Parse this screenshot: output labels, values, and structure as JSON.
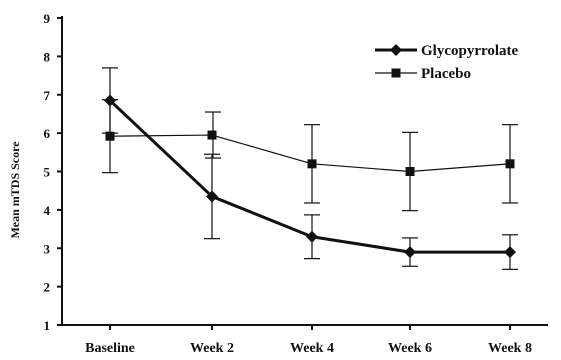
{
  "chart_data": {
    "type": "line",
    "title": "",
    "xlabel": "",
    "ylabel": "Mean mTDS Score",
    "ylim": [
      1,
      9
    ],
    "yticks": [
      1,
      2,
      3,
      4,
      5,
      6,
      7,
      8,
      9
    ],
    "categories": [
      "Baseline",
      "Week 2",
      "Week 4",
      "Week 6",
      "Week 8"
    ],
    "grid": false,
    "legend_position": "top-right",
    "series": [
      {
        "name": "Glycopyrrolate",
        "marker": "diamond",
        "line": "thick",
        "color": "#111111",
        "values": [
          6.85,
          4.35,
          3.3,
          2.9,
          2.9
        ],
        "error": [
          0.85,
          1.1,
          0.57,
          0.37,
          0.45
        ]
      },
      {
        "name": "Placebo",
        "marker": "square",
        "line": "thin",
        "color": "#111111",
        "values": [
          5.92,
          5.95,
          5.2,
          5.0,
          5.2
        ],
        "error": [
          0.95,
          0.6,
          1.02,
          1.02,
          1.02
        ]
      }
    ]
  }
}
